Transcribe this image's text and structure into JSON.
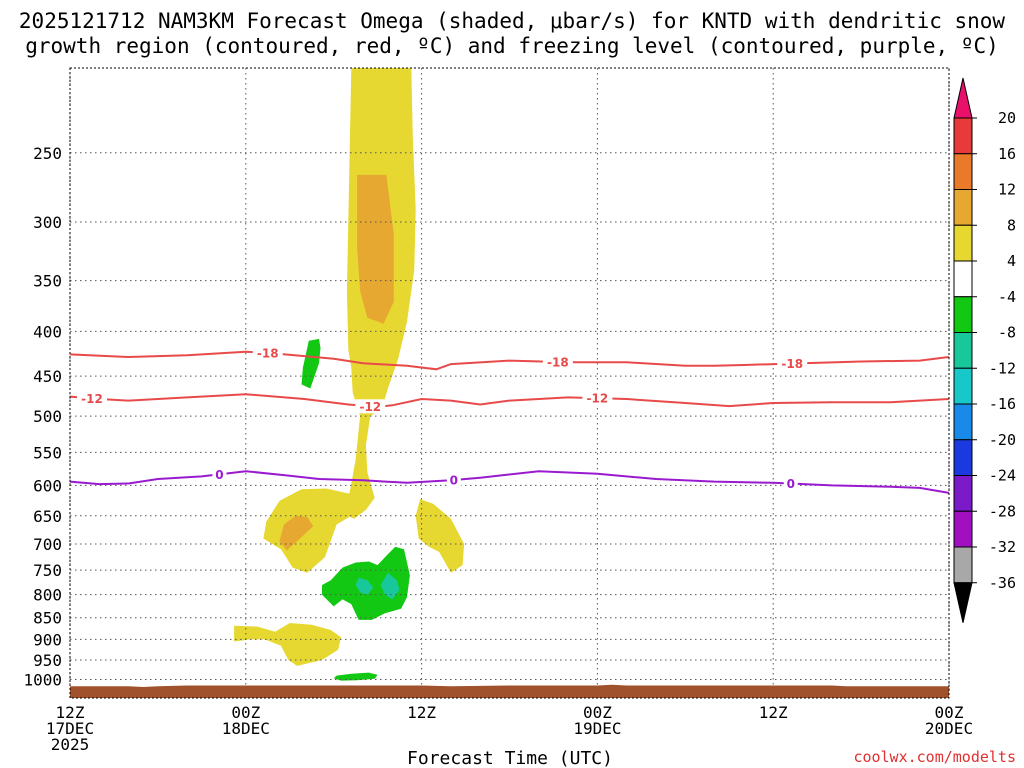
{
  "title_line1": "2025121712 NAM3KM Forecast Omega (shaded, μbar/s) for KNTD with dendritic snow",
  "title_line2": "growth region (contoured, red, ºC) and freezing level (contoured, purple, ºC)",
  "credit": "coolwx.com/modelts",
  "chart_data": {
    "type": "time-height cross section",
    "title": "2025121712 NAM3KM Forecast Omega (shaded, μbar/s) for KNTD with dendritic snow growth region (contoured, red, ºC) and freezing level (contoured, purple, ºC)",
    "xlabel": "Forecast Time (UTC)",
    "ylabel": "",
    "x_range_hours": [
      0,
      60
    ],
    "y_range_hpa": [
      200,
      1050
    ],
    "y_scale": "log-pressure",
    "y_ticks": [
      250,
      300,
      350,
      400,
      450,
      500,
      550,
      600,
      650,
      700,
      750,
      800,
      850,
      900,
      950,
      1000
    ],
    "x_ticks": [
      {
        "hour": 0,
        "line1": "12Z",
        "line2": "17DEC",
        "line3": "2025"
      },
      {
        "hour": 12,
        "line1": "00Z",
        "line2": "18DEC",
        "line3": ""
      },
      {
        "hour": 24,
        "line1": "12Z",
        "line2": "",
        "line3": ""
      },
      {
        "hour": 36,
        "line1": "00Z",
        "line2": "19DEC",
        "line3": ""
      },
      {
        "hour": 48,
        "line1": "12Z",
        "line2": "",
        "line3": ""
      },
      {
        "hour": 60,
        "line1": "00Z",
        "line2": "20DEC",
        "line3": ""
      }
    ],
    "grid": true,
    "colorbar": {
      "units": "μbar/s",
      "ticks": [
        "20",
        "16",
        "12",
        "8",
        "4",
        "-4",
        "-8",
        "-12",
        "-16",
        "-20",
        "-24",
        "-28",
        "-32",
        "-36"
      ],
      "colors": [
        "#e8106a",
        "#e83a3a",
        "#e87a2a",
        "#e6a830",
        "#e6d830",
        "#ffffff",
        "#12c812",
        "#18c89a",
        "#18c8c8",
        "#1a8ae8",
        "#1a3ae0",
        "#7a1ac8",
        "#a010c0",
        "#a8a8a8",
        "#000000"
      ]
    },
    "contours": [
      {
        "name": "dendritic-minus18",
        "label": "-18",
        "color": "#e84a4a",
        "points": [
          [
            0,
            425
          ],
          [
            4,
            428
          ],
          [
            8,
            426
          ],
          [
            12,
            422
          ],
          [
            14,
            424
          ],
          [
            18,
            430
          ],
          [
            20,
            435
          ],
          [
            23,
            438
          ],
          [
            25,
            442
          ],
          [
            26,
            436
          ],
          [
            30,
            432
          ],
          [
            34,
            434
          ],
          [
            38,
            434
          ],
          [
            42,
            438
          ],
          [
            44,
            438
          ],
          [
            46,
            437
          ],
          [
            50,
            435
          ],
          [
            54,
            433
          ],
          [
            58,
            432
          ],
          [
            60,
            428
          ]
        ],
        "label_hours": [
          13.5,
          33.3,
          49.3
        ]
      },
      {
        "name": "dendritic-minus12",
        "label": "-12",
        "color": "#e84a4a",
        "points": [
          [
            0,
            475
          ],
          [
            2,
            478
          ],
          [
            4,
            480
          ],
          [
            8,
            476
          ],
          [
            12,
            472
          ],
          [
            16,
            478
          ],
          [
            19,
            485
          ],
          [
            21,
            488
          ],
          [
            22,
            486
          ],
          [
            24,
            478
          ],
          [
            26,
            480
          ],
          [
            28,
            485
          ],
          [
            30,
            480
          ],
          [
            34,
            476
          ],
          [
            38,
            478
          ],
          [
            42,
            483
          ],
          [
            45,
            487
          ],
          [
            48,
            483
          ],
          [
            52,
            482
          ],
          [
            56,
            482
          ],
          [
            60,
            478
          ]
        ],
        "label_hours": [
          1.5,
          20.5,
          36.0
        ]
      },
      {
        "name": "freezing-level",
        "label": "0",
        "color": "#9a1ad0",
        "points": [
          [
            0,
            594
          ],
          [
            2,
            598
          ],
          [
            4,
            597
          ],
          [
            6,
            590
          ],
          [
            9,
            586
          ],
          [
            12,
            578
          ],
          [
            15,
            585
          ],
          [
            17,
            590
          ],
          [
            20,
            592
          ],
          [
            23,
            596
          ],
          [
            26,
            592
          ],
          [
            28,
            588
          ],
          [
            32,
            578
          ],
          [
            36,
            582
          ],
          [
            40,
            590
          ],
          [
            44,
            594
          ],
          [
            48,
            596
          ],
          [
            52,
            600
          ],
          [
            56,
            602
          ],
          [
            58,
            604
          ],
          [
            60,
            612
          ]
        ],
        "label_hours": [
          10.2,
          26.2,
          49.2
        ]
      }
    ],
    "omega_regions": [
      {
        "name": "yellow-plume",
        "level": "4 to 8",
        "color": "#e6d830"
      },
      {
        "name": "orange-upper-core",
        "level": "8 to 12",
        "color": "#e6a830"
      },
      {
        "name": "yellow-lower-left",
        "level": "4 to 8",
        "color": "#e6d830"
      },
      {
        "name": "orange-lower-core",
        "level": "8 to 12",
        "color": "#e6a830"
      },
      {
        "name": "yellow-right-blob",
        "level": "4 to 8",
        "color": "#e6d830"
      },
      {
        "name": "yellow-low-level",
        "level": "4 to 8",
        "color": "#e6d830"
      },
      {
        "name": "green-upper-strip",
        "level": "-4 to -8",
        "color": "#12c812"
      },
      {
        "name": "green-main-blob",
        "level": "-4 to -8",
        "color": "#12c812"
      },
      {
        "name": "teal-core",
        "level": "-8 to -12",
        "color": "#18c89a"
      },
      {
        "name": "green-surface-blob",
        "level": "-4 to -8",
        "color": "#12c812"
      }
    ],
    "terrain": {
      "name": "surface-terrain",
      "color": "#a0522d"
    }
  }
}
